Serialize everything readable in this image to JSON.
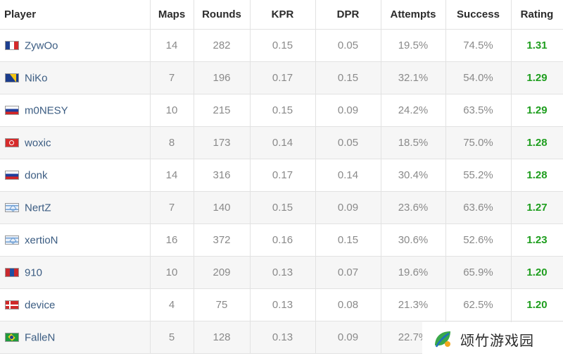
{
  "table": {
    "headers": {
      "player": "Player",
      "maps": "Maps",
      "rounds": "Rounds",
      "kpr": "KPR",
      "dpr": "DPR",
      "attempts": "Attempts",
      "success": "Success",
      "rating": "Rating"
    },
    "rows": [
      {
        "flag": "france-flag-icon",
        "player": "ZywOo",
        "maps": "14",
        "rounds": "282",
        "kpr": "0.15",
        "dpr": "0.05",
        "attempts": "19.5%",
        "success": "74.5%",
        "rating": "1.31"
      },
      {
        "flag": "bosnia-flag-icon",
        "player": "NiKo",
        "maps": "7",
        "rounds": "196",
        "kpr": "0.17",
        "dpr": "0.15",
        "attempts": "32.1%",
        "success": "54.0%",
        "rating": "1.29"
      },
      {
        "flag": "russia-flag-icon",
        "player": "m0NESY",
        "maps": "10",
        "rounds": "215",
        "kpr": "0.15",
        "dpr": "0.09",
        "attempts": "24.2%",
        "success": "63.5%",
        "rating": "1.29"
      },
      {
        "flag": "turkey-flag-icon",
        "player": "woxic",
        "maps": "8",
        "rounds": "173",
        "kpr": "0.14",
        "dpr": "0.05",
        "attempts": "18.5%",
        "success": "75.0%",
        "rating": "1.28"
      },
      {
        "flag": "russia-flag-icon",
        "player": "donk",
        "maps": "14",
        "rounds": "316",
        "kpr": "0.17",
        "dpr": "0.14",
        "attempts": "30.4%",
        "success": "55.2%",
        "rating": "1.28"
      },
      {
        "flag": "israel-flag-icon",
        "player": "NertZ",
        "maps": "7",
        "rounds": "140",
        "kpr": "0.15",
        "dpr": "0.09",
        "attempts": "23.6%",
        "success": "63.6%",
        "rating": "1.27"
      },
      {
        "flag": "israel-flag-icon",
        "player": "xertioN",
        "maps": "16",
        "rounds": "372",
        "kpr": "0.16",
        "dpr": "0.15",
        "attempts": "30.6%",
        "success": "52.6%",
        "rating": "1.23"
      },
      {
        "flag": "mongolia-flag-icon",
        "player": "910",
        "maps": "10",
        "rounds": "209",
        "kpr": "0.13",
        "dpr": "0.07",
        "attempts": "19.6%",
        "success": "65.9%",
        "rating": "1.20"
      },
      {
        "flag": "denmark-flag-icon",
        "player": "device",
        "maps": "4",
        "rounds": "75",
        "kpr": "0.13",
        "dpr": "0.08",
        "attempts": "21.3%",
        "success": "62.5%",
        "rating": "1.20"
      },
      {
        "flag": "brazil-flag-icon",
        "player": "FalleN",
        "maps": "5",
        "rounds": "128",
        "kpr": "0.13",
        "dpr": "0.09",
        "attempts": "22.7%",
        "success": "",
        "rating": ""
      }
    ]
  },
  "watermark": {
    "text": "颂竹游戏园",
    "logo_icon": "leaf-logo-icon"
  },
  "colors": {
    "player_name": "#3b5c82",
    "rating": "#1f9e1f",
    "stat_text": "#8a8a8a",
    "alt_row": "#f6f6f6"
  }
}
